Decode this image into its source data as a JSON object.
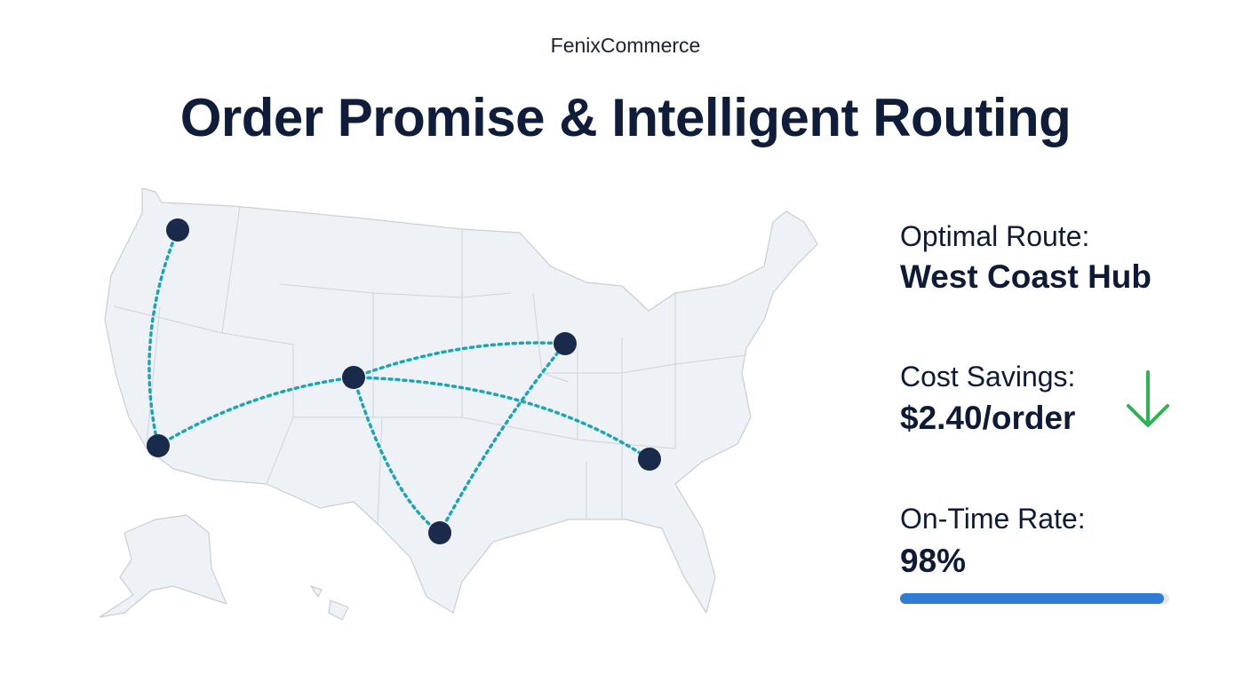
{
  "header": {
    "brand": "FenixCommerce",
    "title": "Order Promise & Intelligent Routing"
  },
  "metrics": [
    {
      "label": "Optimal Route:",
      "value": "West Coast Hub"
    },
    {
      "label": "Cost Savings:",
      "value": "$2.40/order"
    },
    {
      "label": "On-Time Rate:",
      "value": 98,
      "value_label": "98%",
      "max": 100
    }
  ]
}
